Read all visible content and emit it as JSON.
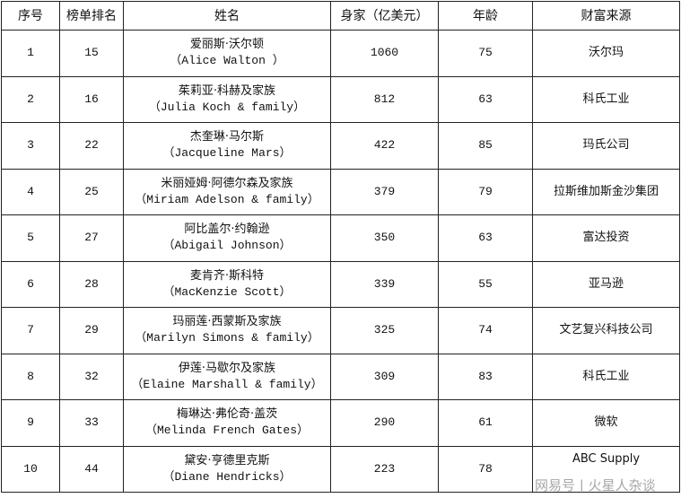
{
  "headers": [
    "序号",
    "榜单排名",
    "姓名",
    "身家（亿美元）",
    "年龄",
    "财富来源"
  ],
  "rows": [
    {
      "no": "1",
      "rank": "15",
      "name_cn": "爱丽斯·沃尔顿",
      "name_en": "（Alice Walton ）",
      "worth": "1060",
      "age": "75",
      "source": "沃尔玛"
    },
    {
      "no": "2",
      "rank": "16",
      "name_cn": "茱莉亚·科赫及家族",
      "name_en": "（Julia Koch & family）",
      "worth": "812",
      "age": "63",
      "source": "科氏工业"
    },
    {
      "no": "3",
      "rank": "22",
      "name_cn": "杰奎琳·马尔斯",
      "name_en": "（Jacqueline Mars）",
      "worth": "422",
      "age": "85",
      "source": "玛氏公司"
    },
    {
      "no": "4",
      "rank": "25",
      "name_cn": "米丽娅姆·阿德尔森及家族",
      "name_en": "（Miriam Adelson & family）",
      "worth": "379",
      "age": "79",
      "source": "拉斯维加斯金沙集团"
    },
    {
      "no": "5",
      "rank": "27",
      "name_cn": "阿比盖尔·约翰逊",
      "name_en": "（Abigail Johnson）",
      "worth": "350",
      "age": "63",
      "source": "富达投资"
    },
    {
      "no": "6",
      "rank": "28",
      "name_cn": "麦肯齐·斯科特",
      "name_en": "（MacKenzie Scott）",
      "worth": "339",
      "age": "55",
      "source": "亚马逊"
    },
    {
      "no": "7",
      "rank": "29",
      "name_cn": "玛丽莲·西蒙斯及家族",
      "name_en": "（Marilyn Simons & family）",
      "worth": "325",
      "age": "74",
      "source": "文艺复兴科技公司"
    },
    {
      "no": "8",
      "rank": "32",
      "name_cn": "伊莲·马歇尔及家族",
      "name_en": "（Elaine Marshall & family）",
      "worth": "309",
      "age": "83",
      "source": "科氏工业"
    },
    {
      "no": "9",
      "rank": "33",
      "name_cn": "梅琳达·弗伦奇·盖茨",
      "name_en": "（Melinda French Gates）",
      "worth": "290",
      "age": "61",
      "source": "微软"
    },
    {
      "no": "10",
      "rank": "44",
      "name_cn": "黛安·亨德里克斯",
      "name_en": "（Diane Hendricks）",
      "worth": "223",
      "age": "78",
      "source": "ABC Supply"
    }
  ],
  "watermark": "网易号 | 火星人杂谈"
}
